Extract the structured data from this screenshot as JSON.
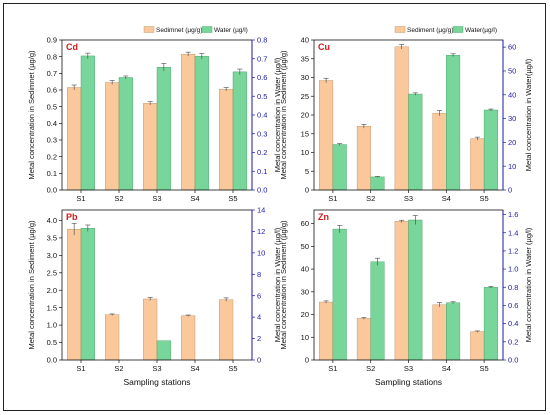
{
  "colors": {
    "sediment": "#fac89a",
    "water": "#78d69a",
    "right_axis": "#1a1aa8",
    "title": "#d0191a"
  },
  "figure": {
    "xlabel": "Sampling stations"
  },
  "chart_data": [
    {
      "type": "bar",
      "title": "Cd",
      "categories": [
        "S1",
        "S2",
        "S3",
        "S4",
        "S5"
      ],
      "ylabel": "Metal concentration in Sedimnet (µg/g)",
      "y2label": "Metal concentration in Water (µg/l)",
      "ylim": [
        0,
        0.9
      ],
      "yticks": [
        0,
        0.1,
        0.2,
        0.3,
        0.4,
        0.5,
        0.6,
        0.7,
        0.8,
        0.9
      ],
      "y2lim": [
        0,
        0.8
      ],
      "y2ticks": [
        0,
        0.1,
        0.2,
        0.3,
        0.4,
        0.5,
        0.6,
        0.7,
        0.8
      ],
      "legend": {
        "placement": "top-right",
        "sediment": "Sedimnet (µg/g)",
        "water": "Water (µg/l)"
      },
      "series": [
        {
          "name": "Sedimnet (µg/g)",
          "axis": "left",
          "values": [
            0.615,
            0.645,
            0.52,
            0.815,
            0.605
          ],
          "errors": [
            0.015,
            0.012,
            0.01,
            0.012,
            0.01
          ]
        },
        {
          "name": "Water (µg/l)",
          "axis": "right",
          "values": [
            0.715,
            0.6,
            0.655,
            0.713,
            0.63
          ],
          "errors": [
            0.015,
            0.008,
            0.02,
            0.015,
            0.015
          ]
        }
      ]
    },
    {
      "type": "bar",
      "title": "Cu",
      "categories": [
        "S1",
        "S2",
        "S3",
        "S4",
        "S5"
      ],
      "ylabel": "Metal concentration in Sediment (µg/g)",
      "y2label": "Metal concentration in Water(µg/l)",
      "ylim": [
        0,
        40
      ],
      "yticks": [
        0,
        5,
        10,
        15,
        20,
        25,
        30,
        35,
        40
      ],
      "y2lim": [
        0,
        63
      ],
      "y2ticks": [
        0,
        10,
        20,
        30,
        40,
        50,
        60
      ],
      "legend": {
        "placement": "top-right",
        "sediment": "Sediment (µg/g)",
        "water": "Water(µg/l)"
      },
      "series": [
        {
          "name": "Sediment (µg/g)",
          "axis": "left",
          "values": [
            29.2,
            17,
            38.2,
            20.5,
            13.7
          ],
          "errors": [
            0.6,
            0.5,
            0.6,
            0.7,
            0.4
          ]
        },
        {
          "name": "Water(µg/l)",
          "axis": "right",
          "values": [
            19.1,
            5.5,
            40.3,
            56.6,
            33.6
          ],
          "errors": [
            0.4,
            0.2,
            0.5,
            0.6,
            0.4
          ]
        }
      ]
    },
    {
      "type": "bar",
      "title": "Pb",
      "categories": [
        "S1",
        "S2",
        "S3",
        "S4",
        "S5"
      ],
      "ylabel": "Metal concentration in Sediment (µg/g)",
      "y2label": "Metal concentration in Water (µg/l)",
      "ylim": [
        0,
        4.3
      ],
      "yticks": [
        0,
        0.5,
        1.0,
        1.5,
        2.0,
        2.5,
        3.0,
        3.5,
        4.0
      ],
      "y2lim": [
        0,
        14
      ],
      "y2ticks": [
        0,
        2,
        4,
        6,
        8,
        10,
        12,
        14
      ],
      "legend": {
        "placement": "none"
      },
      "series": [
        {
          "name": "Sediment",
          "axis": "left",
          "values": [
            3.75,
            1.3,
            1.75,
            1.27,
            1.73
          ],
          "errors": [
            0.17,
            0.02,
            0.04,
            0.02,
            0.05
          ]
        },
        {
          "name": "Water",
          "axis": "right",
          "values": [
            12.3,
            0,
            1.8,
            0,
            0
          ],
          "errors": [
            0.3,
            0,
            0,
            0,
            0
          ]
        }
      ]
    },
    {
      "type": "bar",
      "title": "Zn",
      "categories": [
        "S1",
        "S2",
        "S3",
        "S4",
        "S5"
      ],
      "ylabel": "Metal concentration in Sediment (µg/g)",
      "y2label": "Metal concentration in Water (µg/l)",
      "ylim": [
        0,
        66
      ],
      "yticks": [
        0,
        10,
        20,
        30,
        40,
        50,
        60
      ],
      "y2lim": [
        0,
        1.65
      ],
      "y2ticks": [
        0,
        0.2,
        0.4,
        0.6,
        0.8,
        1.0,
        1.2,
        1.4,
        1.6
      ],
      "legend": {
        "placement": "none"
      },
      "series": [
        {
          "name": "Sediment",
          "axis": "left",
          "values": [
            25.5,
            18.3,
            61,
            24.3,
            12.5
          ],
          "errors": [
            0.5,
            0.4,
            0.5,
            1.0,
            0.3
          ]
        },
        {
          "name": "Water",
          "axis": "right",
          "values": [
            1.44,
            1.08,
            1.54,
            0.63,
            0.8
          ],
          "errors": [
            0.04,
            0.04,
            0.05,
            0.01,
            0.01
          ]
        }
      ]
    }
  ]
}
